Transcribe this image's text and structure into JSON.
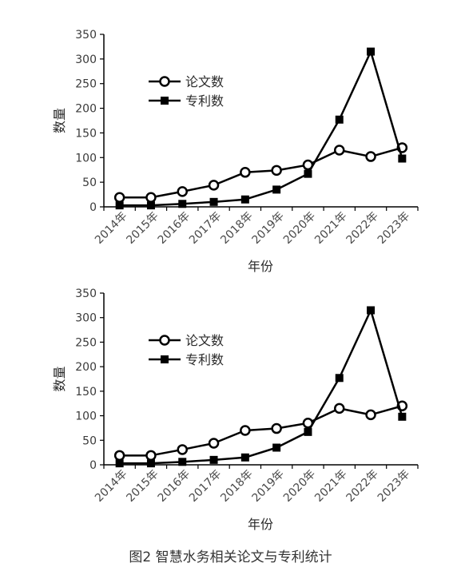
{
  "chart_data": [
    {
      "type": "line",
      "categories": [
        "2014年",
        "2015年",
        "2016年",
        "2017年",
        "2018年",
        "2019年",
        "2020年",
        "2021年",
        "2022年",
        "2023年"
      ],
      "series": [
        {
          "name": "论文数",
          "marker": "open-circle",
          "values": [
            19,
            19,
            31,
            44,
            70,
            74,
            85,
            115,
            102,
            120
          ]
        },
        {
          "name": "专利数",
          "marker": "filled-square",
          "values": [
            3,
            3,
            6,
            10,
            15,
            35,
            67,
            177,
            315,
            98
          ]
        }
      ],
      "xlabel": "年份",
      "ylabel": "数量",
      "ylim": [
        0,
        350
      ],
      "yticks": [
        0,
        50,
        100,
        150,
        200,
        250,
        300,
        350
      ],
      "grid": false,
      "legend_position": "top-left"
    },
    {
      "type": "line",
      "categories": [
        "2014年",
        "2015年",
        "2016年",
        "2017年",
        "2018年",
        "2019年",
        "2020年",
        "2021年",
        "2022年",
        "2023年"
      ],
      "series": [
        {
          "name": "论文数",
          "marker": "open-circle",
          "values": [
            19,
            19,
            31,
            44,
            70,
            74,
            85,
            115,
            102,
            120
          ]
        },
        {
          "name": "专利数",
          "marker": "filled-square",
          "values": [
            3,
            3,
            6,
            10,
            15,
            35,
            67,
            177,
            315,
            98
          ]
        }
      ],
      "xlabel": "年份",
      "ylabel": "数量",
      "ylim": [
        0,
        350
      ],
      "yticks": [
        0,
        50,
        100,
        150,
        200,
        250,
        300,
        350
      ],
      "grid": false,
      "legend_position": "top-left"
    }
  ],
  "caption": "图2 智慧水务相关论文与专利统计",
  "colors": {
    "line": "#000000",
    "axis": "#000000",
    "text": "#333333"
  }
}
